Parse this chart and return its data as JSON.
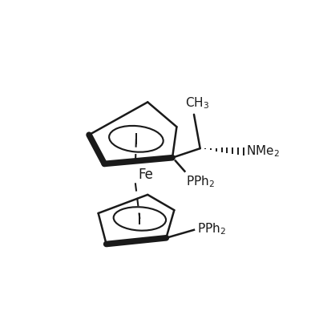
{
  "bg_color": "#ffffff",
  "line_color": "#1a1a1a",
  "lw": 1.8,
  "lw_thick": 5.5,
  "figsize": [
    3.88,
    3.88
  ],
  "dpi": 100,
  "ch3_label": "CH$_3$",
  "nme2_label": "NMe$_2$",
  "pph2_top_label": "PPh$_2$",
  "pph2_bot_label": "PPh$_2$",
  "fe_label": "Fe",
  "font_size": 11
}
